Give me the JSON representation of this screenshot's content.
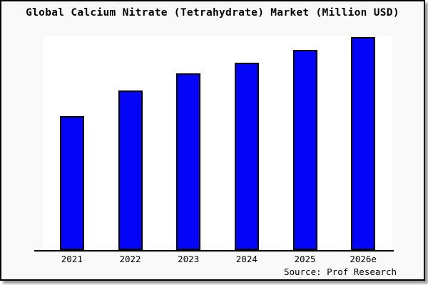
{
  "chart_data": {
    "type": "bar",
    "title": "Global Calcium Nitrate (Tetrahydrate) Market (Million USD)",
    "categories": [
      "2021",
      "2022",
      "2023",
      "2024",
      "2025",
      "2026e"
    ],
    "values": [
      63,
      75,
      83,
      88,
      94,
      100
    ],
    "value_basis": "relative, normalized to 2026e = 100 (no y-axis ticks shown)",
    "xlabel": "",
    "ylabel": "",
    "y_axis_visible": false,
    "grid": false,
    "legend": false,
    "bar_color": "#0404f8",
    "bar_border_color": "#000000",
    "plot_background": "#ffffff",
    "canvas_background": "#f9f9f9",
    "source": "Source: Prof Research"
  }
}
